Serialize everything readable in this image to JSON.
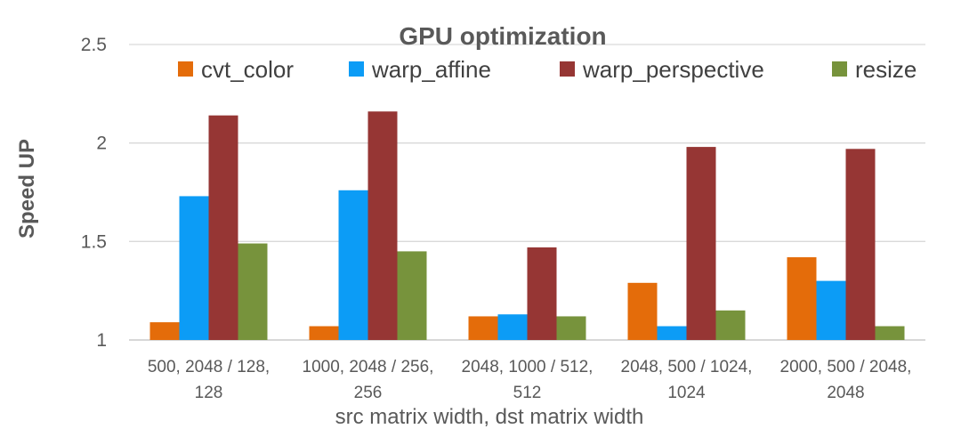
{
  "chart_data": {
    "type": "bar",
    "title": "GPU optimization",
    "xlabel": "src matrix width, dst matrix width",
    "ylabel": "Speed UP",
    "ylim": [
      1,
      2.5
    ],
    "yticks": [
      "1",
      "1.5",
      "2",
      "2.5"
    ],
    "ytick_values": [
      1,
      1.5,
      2,
      2.5
    ],
    "grid": true,
    "legend_position": "top",
    "categories": [
      [
        "500, 2048 / 128,",
        "128"
      ],
      [
        "1000, 2048 / 256,",
        "256"
      ],
      [
        "2048, 1000 / 512,",
        "512"
      ],
      [
        "2048, 500 / 1024,",
        "1024"
      ],
      [
        "2000, 500 / 2048,",
        "2048"
      ]
    ],
    "series": [
      {
        "name": "cvt_color",
        "color": "#E46C0A",
        "values": [
          1.09,
          1.07,
          1.12,
          1.29,
          1.42
        ]
      },
      {
        "name": "warp_affine",
        "color": "#0C9CF6",
        "values": [
          1.73,
          1.76,
          1.13,
          1.07,
          1.3
        ]
      },
      {
        "name": "warp_perspective",
        "color": "#963634",
        "values": [
          2.14,
          2.16,
          1.47,
          1.98,
          1.97
        ]
      },
      {
        "name": "resize",
        "color": "#77933C",
        "values": [
          1.49,
          1.45,
          1.12,
          1.15,
          1.07
        ]
      }
    ]
  }
}
